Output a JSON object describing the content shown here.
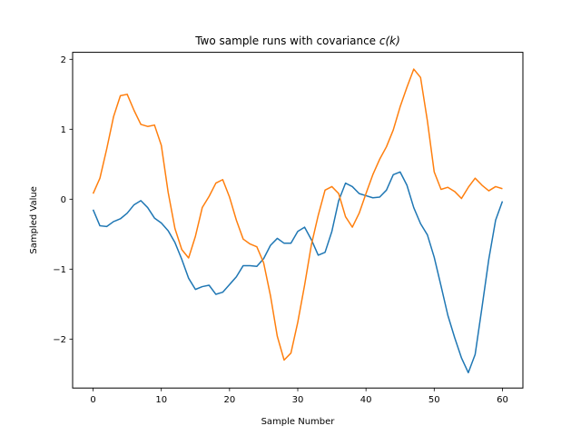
{
  "chart_data": {
    "type": "line",
    "title": "Two sample runs with covariance",
    "title_math": "c(k)",
    "xlabel": "Sample Number",
    "ylabel": "Sampled Value",
    "xlim": [
      -3,
      63
    ],
    "ylim": [
      -2.7,
      2.1
    ],
    "xticks": [
      0,
      10,
      20,
      30,
      40,
      50,
      60
    ],
    "yticks": [
      -2,
      -1,
      0,
      1,
      2
    ],
    "ytick_labels": [
      "−2",
      "−1",
      "0",
      "1",
      "2"
    ],
    "grid": false,
    "series": [
      {
        "color": "#1f77b4",
        "x": [
          0,
          1,
          2,
          3,
          4,
          5,
          6,
          7,
          8,
          9,
          10,
          11,
          12,
          13,
          14,
          15,
          16,
          17,
          18,
          19,
          20,
          21,
          22,
          23,
          24,
          25,
          26,
          27,
          28,
          29,
          30,
          31,
          32,
          33,
          34,
          35,
          36,
          37,
          38,
          39,
          40,
          41,
          42,
          43,
          44,
          45,
          46,
          47,
          48,
          49,
          50,
          51,
          52,
          53,
          54,
          55,
          56,
          57,
          58,
          59,
          60
        ],
        "values": [
          -0.15,
          -0.38,
          -0.39,
          -0.32,
          -0.28,
          -0.2,
          -0.08,
          -0.02,
          -0.12,
          -0.27,
          -0.34,
          -0.45,
          -0.62,
          -0.86,
          -1.13,
          -1.29,
          -1.25,
          -1.23,
          -1.36,
          -1.33,
          -1.22,
          -1.11,
          -0.95,
          -0.95,
          -0.96,
          -0.85,
          -0.66,
          -0.56,
          -0.63,
          -0.63,
          -0.46,
          -0.4,
          -0.58,
          -0.8,
          -0.76,
          -0.46,
          -0.02,
          0.23,
          0.18,
          0.08,
          0.05,
          0.02,
          0.03,
          0.13,
          0.35,
          0.39,
          0.2,
          -0.12,
          -0.35,
          -0.51,
          -0.83,
          -1.24,
          -1.66,
          -1.98,
          -2.27,
          -2.48,
          -2.22,
          -1.55,
          -0.86,
          -0.3,
          -0.03
        ]
      },
      {
        "color": "#ff7f0e",
        "x": [
          0,
          1,
          2,
          3,
          4,
          5,
          6,
          7,
          8,
          9,
          10,
          11,
          12,
          13,
          14,
          15,
          16,
          17,
          18,
          19,
          20,
          21,
          22,
          23,
          24,
          25,
          26,
          27,
          28,
          29,
          30,
          31,
          32,
          33,
          34,
          35,
          36,
          37,
          38,
          39,
          40,
          41,
          42,
          43,
          44,
          45,
          46,
          47,
          48,
          49,
          50,
          51,
          52,
          53,
          54,
          55,
          56,
          57,
          58,
          59,
          60
        ],
        "values": [
          0.08,
          0.3,
          0.72,
          1.18,
          1.48,
          1.5,
          1.27,
          1.07,
          1.04,
          1.06,
          0.77,
          0.1,
          -0.42,
          -0.72,
          -0.84,
          -0.53,
          -0.12,
          0.04,
          0.23,
          0.28,
          0.03,
          -0.3,
          -0.57,
          -0.64,
          -0.68,
          -0.91,
          -1.38,
          -1.96,
          -2.3,
          -2.2,
          -1.76,
          -1.23,
          -0.65,
          -0.23,
          0.13,
          0.18,
          0.08,
          -0.25,
          -0.4,
          -0.2,
          0.08,
          0.35,
          0.57,
          0.75,
          0.99,
          1.32,
          1.6,
          1.86,
          1.74,
          1.12,
          0.39,
          0.14,
          0.17,
          0.11,
          0.01,
          0.17,
          0.3,
          0.2,
          0.12,
          0.18,
          0.15
        ]
      }
    ]
  }
}
